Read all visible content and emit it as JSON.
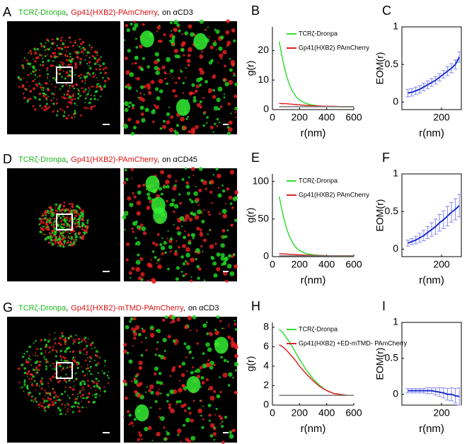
{
  "figure": {
    "rows": [
      {
        "letter": "A",
        "caption": [
          {
            "text": "TCRζ-Dronpa",
            "color": "#1db51d"
          },
          {
            "text": ",",
            "color": "#000000"
          },
          {
            "text": "Gp41(HXB2)-PAmCherry",
            "color": "#e01010"
          },
          {
            "text": ",",
            "color": "#000000"
          },
          {
            "text": "on αCD3",
            "color": "#000000"
          }
        ]
      },
      {
        "letter": "D",
        "caption": [
          {
            "text": "TCRζ-Dronpa",
            "color": "#1db51d"
          },
          {
            "text": ",",
            "color": "#000000"
          },
          {
            "text": "Gp41(HXB2)-PAmCherry",
            "color": "#e01010"
          },
          {
            "text": ",",
            "color": "#000000"
          },
          {
            "text": "on αCD45",
            "color": "#000000"
          }
        ]
      },
      {
        "letter": "G",
        "caption": [
          {
            "text": "TCRζ-Dronpa",
            "color": "#1db51d"
          },
          {
            "text": ",",
            "color": "#000000"
          },
          {
            "text": "Gp41(HXB2)-mTMD-PAmCherry",
            "color": "#e01010"
          },
          {
            "text": ",",
            "color": "#000000"
          },
          {
            "text": "on αCD3",
            "color": "#000000"
          }
        ]
      }
    ]
  },
  "chart_data": [
    {
      "type": "line",
      "panel_label": "B",
      "xlabel": "r(nm)",
      "ylabel": "g(r)",
      "x": [
        50,
        75,
        100,
        125,
        150,
        175,
        200,
        250,
        300,
        350,
        400,
        450,
        500,
        550,
        600
      ],
      "xlim": [
        0,
        600
      ],
      "xticks": [
        0,
        200,
        400,
        600
      ],
      "ylim": [
        0,
        28
      ],
      "yticks": [
        0,
        10,
        20
      ],
      "series": [
        {
          "name": "TCRζ-Dronpa",
          "color": "#33dd33",
          "values": [
            23,
            17,
            12,
            8.5,
            6,
            4.3,
            3.2,
            2,
            1.5,
            1.2,
            1.05,
            1,
            1,
            1,
            1
          ]
        },
        {
          "name": "Gp41(HXB2) PAmCherry",
          "color": "#e02020",
          "values": [
            2.1,
            2,
            2,
            1.9,
            1.8,
            1.7,
            1.6,
            1.4,
            1.3,
            1.2,
            1.1,
            1.1,
            1,
            1,
            1
          ]
        },
        {
          "color": "#777777",
          "values": [
            1,
            1,
            1,
            1,
            1,
            1,
            1,
            1,
            1,
            1,
            1,
            1,
            1,
            1,
            1
          ]
        }
      ]
    },
    {
      "type": "errorline",
      "panel_label": "C",
      "xlabel": "r(nm)",
      "ylabel": "EOM(r)",
      "x": [
        30,
        50,
        70,
        90,
        110,
        130,
        150,
        170,
        190,
        210,
        230,
        250,
        270,
        290
      ],
      "xlim": [
        0,
        300
      ],
      "xticks": [
        200
      ],
      "ylim": [
        -0.1,
        1
      ],
      "yticks": [
        0,
        0.5,
        1
      ],
      "color": "#1a2fd0",
      "errcolor": "#8888ee",
      "values": [
        0.12,
        0.13,
        0.15,
        0.17,
        0.2,
        0.23,
        0.26,
        0.29,
        0.33,
        0.37,
        0.41,
        0.45,
        0.5,
        0.6
      ],
      "errors": [
        0.05,
        0.05,
        0.05,
        0.05,
        0.05,
        0.05,
        0.05,
        0.05,
        0.05,
        0.05,
        0.06,
        0.06,
        0.06,
        0.07
      ]
    },
    {
      "type": "line",
      "panel_label": "E",
      "xlabel": "r(nm)",
      "ylabel": "g(r)",
      "x": [
        50,
        75,
        100,
        125,
        150,
        175,
        200,
        250,
        300,
        350,
        400,
        450,
        500,
        550,
        600
      ],
      "xlim": [
        0,
        600
      ],
      "xticks": [
        0,
        200,
        400,
        600
      ],
      "ylim": [
        0,
        110
      ],
      "yticks": [
        0,
        50,
        100
      ],
      "series": [
        {
          "name": "TCRζ-Dronpa",
          "color": "#33dd33",
          "values": [
            80,
            58,
            40,
            27,
            18,
            12,
            8,
            4,
            2.5,
            1.8,
            1.3,
            1.1,
            1,
            1,
            1
          ]
        },
        {
          "name": "Gp41(HXB2) PAmCherry",
          "color": "#e02020",
          "values": [
            4,
            3.8,
            3.5,
            3.2,
            3,
            2.7,
            2.4,
            2,
            1.6,
            1.4,
            1.2,
            1.1,
            1,
            1,
            1
          ]
        },
        {
          "color": "#777777",
          "values": [
            1,
            1,
            1,
            1,
            1,
            1,
            1,
            1,
            1,
            1,
            1,
            1,
            1,
            1,
            1
          ]
        }
      ]
    },
    {
      "type": "errorline",
      "panel_label": "F",
      "xlabel": "r(nm)",
      "ylabel": "EOM(r)",
      "x": [
        30,
        50,
        70,
        90,
        110,
        130,
        150,
        170,
        190,
        210,
        230,
        250,
        270,
        290
      ],
      "xlim": [
        0,
        300
      ],
      "xticks": [
        200
      ],
      "ylim": [
        -0.1,
        1
      ],
      "yticks": [
        0,
        0.5,
        1
      ],
      "color": "#1a2fd0",
      "errcolor": "#8888ee",
      "values": [
        0.08,
        0.1,
        0.12,
        0.15,
        0.18,
        0.22,
        0.26,
        0.3,
        0.35,
        0.39,
        0.44,
        0.49,
        0.53,
        0.58
      ],
      "errors": [
        0.04,
        0.04,
        0.05,
        0.06,
        0.07,
        0.08,
        0.09,
        0.1,
        0.11,
        0.12,
        0.13,
        0.13,
        0.14,
        0.15
      ]
    },
    {
      "type": "line",
      "panel_label": "H",
      "xlabel": "r(nm)",
      "ylabel": "g(r)",
      "x": [
        50,
        75,
        100,
        125,
        150,
        175,
        200,
        250,
        300,
        350,
        400,
        450,
        500,
        550,
        600
      ],
      "xlim": [
        0,
        600
      ],
      "xticks": [
        0,
        200,
        400,
        600
      ],
      "ylim": [
        0,
        8.5
      ],
      "yticks": [
        0,
        2,
        4,
        6,
        8
      ],
      "series": [
        {
          "name": "TCRζ-Dronpa",
          "color": "#33dd33",
          "values": [
            7.8,
            7.5,
            7,
            6.5,
            5.9,
            5.3,
            4.7,
            3.6,
            2.7,
            2,
            1.5,
            1.2,
            1.1,
            1,
            1
          ]
        },
        {
          "name": "Gp41(HXB2) +ED-mTMD- PAmCherry",
          "color": "#e02020",
          "values": [
            6.2,
            6,
            5.7,
            5.3,
            4.9,
            4.5,
            4,
            3.2,
            2.5,
            1.9,
            1.5,
            1.2,
            1.1,
            1,
            1
          ]
        },
        {
          "color": "#777777",
          "values": [
            1,
            1,
            1,
            1,
            1,
            1,
            1,
            1,
            1,
            1,
            1,
            1,
            1,
            1,
            1
          ]
        }
      ]
    },
    {
      "type": "errorline",
      "panel_label": "I",
      "xlabel": "r(nm)",
      "ylabel": "EOM(r)",
      "x": [
        30,
        50,
        70,
        90,
        110,
        130,
        150,
        170,
        190,
        210,
        230,
        250,
        270,
        290
      ],
      "xlim": [
        0,
        300
      ],
      "xticks": [
        200
      ],
      "ylim": [
        -0.15,
        1
      ],
      "yticks": [
        0,
        0.5,
        1
      ],
      "color": "#1a2fd0",
      "errcolor": "#8888ee",
      "values": [
        0.05,
        0.05,
        0.05,
        0.05,
        0.05,
        0.05,
        0.05,
        0.04,
        0.03,
        0.02,
        0,
        0,
        -0.02,
        -0.03
      ],
      "errors": [
        0.03,
        0.03,
        0.03,
        0.03,
        0.03,
        0.04,
        0.04,
        0.05,
        0.06,
        0.07,
        0.08,
        0.09,
        0.1,
        0.12
      ]
    }
  ]
}
